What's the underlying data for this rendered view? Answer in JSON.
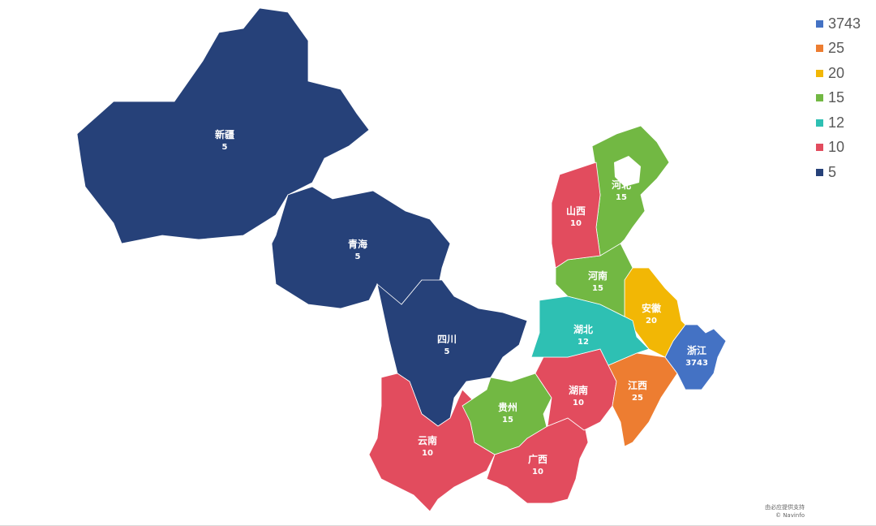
{
  "chart_data": {
    "type": "filled-map",
    "regions": [
      {
        "name": "新疆",
        "value": 5
      },
      {
        "name": "青海",
        "value": 5
      },
      {
        "name": "四川",
        "value": 5
      },
      {
        "name": "云南",
        "value": 10
      },
      {
        "name": "贵州",
        "value": 15
      },
      {
        "name": "广西",
        "value": 10
      },
      {
        "name": "湖南",
        "value": 10
      },
      {
        "name": "江西",
        "value": 25
      },
      {
        "name": "浙江",
        "value": 3743
      },
      {
        "name": "安徽",
        "value": 20
      },
      {
        "name": "湖北",
        "value": 12
      },
      {
        "name": "河南",
        "value": 15
      },
      {
        "name": "河北",
        "value": 15
      },
      {
        "name": "山西",
        "value": 10
      }
    ],
    "legend": {
      "placement": "top-right",
      "items": [
        {
          "label": "3743",
          "color": "#4472C4"
        },
        {
          "label": "25",
          "color": "#ED7D31"
        },
        {
          "label": "20",
          "color": "#F2B705"
        },
        {
          "label": "15",
          "color": "#72B843"
        },
        {
          "label": "12",
          "color": "#2EC0B3"
        },
        {
          "label": "10",
          "color": "#E24C5E"
        },
        {
          "label": "5",
          "color": "#264179"
        }
      ]
    }
  },
  "attribution": {
    "line1": "由必应提供支持",
    "line2": "© Navinfo"
  }
}
